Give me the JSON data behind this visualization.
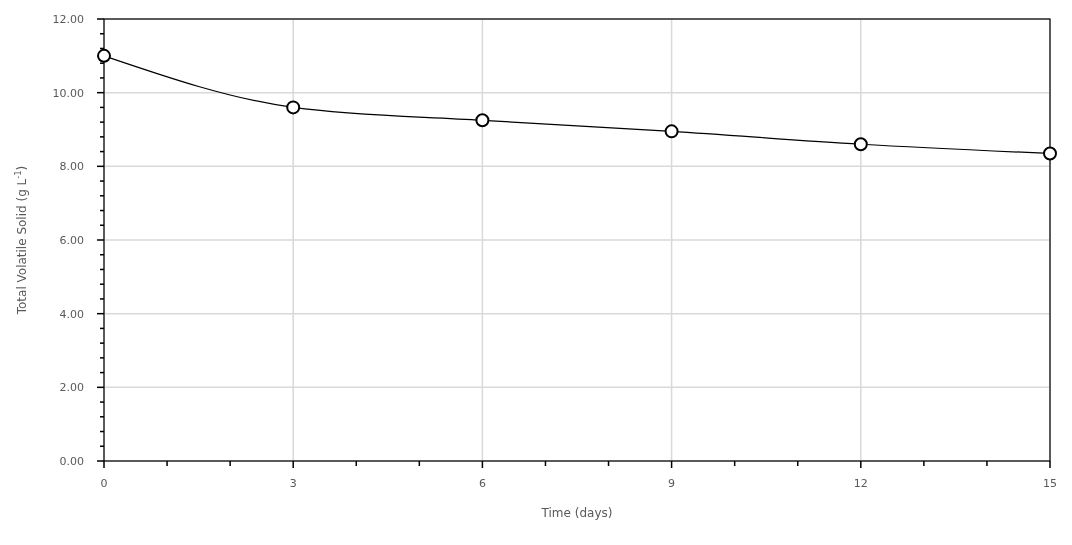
{
  "chart_data": {
    "type": "line",
    "xlabel": "Time (days)",
    "ylabel": "Total Volatile Solid (g L$^{-1}$)",
    "x": [
      0,
      3,
      6,
      9,
      12,
      15
    ],
    "series": [
      {
        "color": "#000000",
        "values": [
          11.0,
          9.6,
          9.25,
          8.95,
          8.6,
          8.35
        ]
      }
    ],
    "xlim": [
      0,
      15
    ],
    "ylim": [
      0,
      12
    ],
    "xticks": [
      0,
      {
        "value": 1,
        "label": null
      },
      {
        "value": 2,
        "label": null
      },
      3,
      {
        "value": 4,
        "label": null
      },
      {
        "value": 5,
        "label": null
      },
      6,
      {
        "value": 7,
        "label": null
      },
      {
        "value": 8,
        "label": null
      },
      9,
      {
        "value": 10,
        "label": null
      },
      {
        "value": 11,
        "label": null
      },
      12,
      {
        "value": 13,
        "label": null
      },
      {
        "value": 14,
        "label": null
      },
      15
    ],
    "yticks": [
      {
        "value": 0,
        "label": "0.00"
      },
      {
        "value": 0.4,
        "label": null
      },
      {
        "value": 0.8,
        "label": null
      },
      {
        "value": 1.2,
        "label": null
      },
      {
        "value": 1.6,
        "label": null
      },
      {
        "value": 2,
        "label": "2.00"
      },
      {
        "value": 2.4,
        "label": null
      },
      {
        "value": 2.8,
        "label": null
      },
      {
        "value": 3.2,
        "label": null
      },
      {
        "value": 3.6,
        "label": null
      },
      {
        "value": 4,
        "label": "4.00"
      },
      {
        "value": 4.4,
        "label": null
      },
      {
        "value": 4.8,
        "label": null
      },
      {
        "value": 5.2,
        "label": null
      },
      {
        "value": 5.6,
        "label": null
      },
      {
        "value": 6,
        "label": "6.00"
      },
      {
        "value": 6.4,
        "label": null
      },
      {
        "value": 6.8,
        "label": null
      },
      {
        "value": 7.2,
        "label": null
      },
      {
        "value": 7.6,
        "label": null
      },
      {
        "value": 8,
        "label": "8.00"
      },
      {
        "value": 8.4,
        "label": null
      },
      {
        "value": 8.8,
        "label": null
      },
      {
        "value": 9.2,
        "label": null
      },
      {
        "value": 9.6,
        "label": null
      },
      {
        "value": 10,
        "label": "10.00"
      },
      {
        "value": 10.4,
        "label": null
      },
      {
        "value": 10.8,
        "label": null
      },
      {
        "value": 11.2,
        "label": null
      },
      {
        "value": 11.6,
        "label": null
      },
      {
        "value": 12,
        "label": "12.00"
      }
    ],
    "grid": true,
    "marker": "circle",
    "line_style": "solid"
  }
}
